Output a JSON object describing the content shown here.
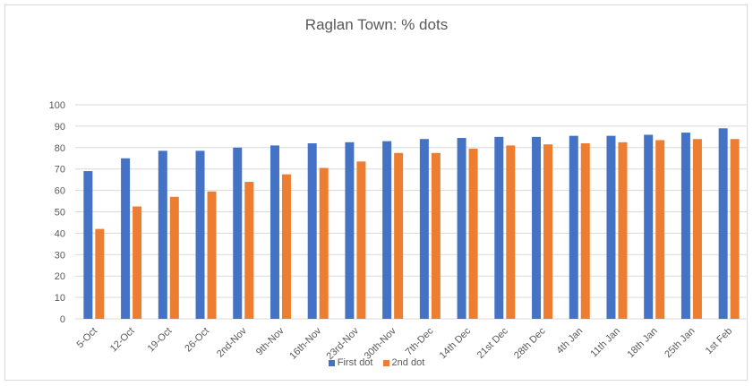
{
  "chart_data": {
    "type": "bar",
    "title": "Raglan Town: % dots",
    "categories": [
      "5-Oct",
      "12-Oct",
      "19-Oct",
      "26-Oct",
      "2nd-Nov",
      "9th-Nov",
      "16th-Nov",
      "23rd-Nov",
      "30th-Nov",
      "7th-Dec",
      "14th Dec",
      "21st Dec",
      "28th Dec",
      "4th Jan",
      "11th Jan",
      "18th Jan",
      "25th Jan",
      "1st Feb"
    ],
    "series": [
      {
        "name": "First dot",
        "color": "#4472C4",
        "values": [
          69,
          75,
          78.5,
          78.5,
          80,
          81,
          82,
          82.5,
          83,
          84,
          84.5,
          85,
          85,
          85.5,
          85.5,
          86,
          87,
          89
        ]
      },
      {
        "name": "2nd dot",
        "color": "#ED7D31",
        "values": [
          42,
          52.5,
          57,
          59.5,
          64,
          67.5,
          70.5,
          73.5,
          77.5,
          77.5,
          79.5,
          81,
          81.5,
          82,
          82.5,
          83.5,
          84,
          84
        ]
      }
    ],
    "xlabel": "",
    "ylabel": "",
    "ylim": [
      0,
      100
    ],
    "yticks": [
      0,
      10,
      20,
      30,
      40,
      50,
      60,
      70,
      80,
      90,
      100
    ],
    "grid": true,
    "legend": "bottom"
  }
}
